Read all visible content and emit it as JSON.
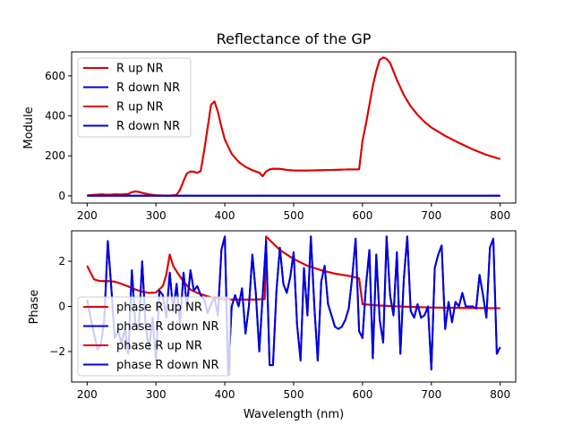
{
  "colors": {
    "red": "#dd0000",
    "blue": "#0000dd",
    "axis": "#000000",
    "background": "#ffffff"
  },
  "chart_data": [
    {
      "type": "line",
      "title": "Reflectance of the GP",
      "xlabel": "",
      "ylabel": "Module",
      "xlim": [
        177.5,
        822.5
      ],
      "ylim": [
        -36,
        720
      ],
      "xticks": [
        200,
        300,
        400,
        500,
        600,
        700,
        800
      ],
      "yticks": [
        0,
        200,
        400,
        600
      ],
      "grid": false,
      "legend_position": "top-left",
      "series": [
        {
          "name": "R up NR",
          "color": "#dd0000",
          "x": [
            200,
            210,
            220,
            230,
            240,
            250,
            260,
            265,
            270,
            275,
            280,
            290,
            300,
            310,
            320,
            330,
            335,
            340,
            345,
            350,
            355,
            360,
            365,
            370,
            375,
            380,
            385,
            390,
            395,
            400,
            410,
            420,
            430,
            440,
            450,
            455,
            460,
            465,
            470,
            480,
            490,
            500,
            520,
            540,
            560,
            580,
            595,
            600,
            605,
            610,
            615,
            620,
            625,
            630,
            635,
            640,
            650,
            660,
            670,
            680,
            690,
            700,
            720,
            740,
            760,
            780,
            800
          ],
          "y": [
            2,
            5,
            8,
            6,
            8,
            7,
            10,
            18,
            22,
            20,
            15,
            8,
            3,
            2,
            1,
            5,
            30,
            75,
            112,
            122,
            121,
            115,
            125,
            225,
            340,
            455,
            472,
            420,
            345,
            282,
            210,
            170,
            145,
            128,
            116,
            98,
            122,
            132,
            136,
            135,
            130,
            127,
            127,
            128,
            130,
            132,
            133,
            275,
            360,
            455,
            550,
            625,
            680,
            692,
            685,
            665,
            580,
            505,
            448,
            405,
            370,
            342,
            300,
            265,
            233,
            205,
            184
          ]
        },
        {
          "name": "R down NR",
          "color": "#0000dd",
          "x": [
            200,
            800
          ],
          "y": [
            1,
            1
          ]
        },
        {
          "name": "R up NR",
          "color": "#dd0000",
          "x": [
            200,
            210,
            220,
            230,
            240,
            250,
            260,
            265,
            270,
            275,
            280,
            290,
            300,
            310,
            320,
            330,
            335,
            340,
            345,
            350,
            355,
            360,
            365,
            370,
            375,
            380,
            385,
            390,
            395,
            400,
            410,
            420,
            430,
            440,
            450,
            455,
            460,
            465,
            470,
            480,
            490,
            500,
            520,
            540,
            560,
            580,
            595,
            600,
            605,
            610,
            615,
            620,
            625,
            630,
            635,
            640,
            650,
            660,
            670,
            680,
            690,
            700,
            720,
            740,
            760,
            780,
            800
          ],
          "y": [
            2,
            5,
            8,
            6,
            8,
            7,
            10,
            18,
            22,
            20,
            15,
            8,
            3,
            2,
            1,
            5,
            30,
            75,
            112,
            122,
            121,
            115,
            125,
            225,
            340,
            455,
            472,
            420,
            345,
            282,
            210,
            170,
            145,
            128,
            116,
            98,
            122,
            132,
            136,
            135,
            130,
            127,
            127,
            128,
            130,
            132,
            133,
            275,
            360,
            455,
            550,
            625,
            680,
            692,
            685,
            665,
            580,
            505,
            448,
            405,
            370,
            342,
            300,
            265,
            233,
            205,
            184
          ]
        },
        {
          "name": "R down NR",
          "color": "#0000dd",
          "x": [
            200,
            800
          ],
          "y": [
            1,
            1
          ]
        }
      ]
    },
    {
      "type": "line",
      "title": "",
      "xlabel": "Wavelength (nm)",
      "ylabel": "Phase",
      "xlim": [
        177.5,
        822.5
      ],
      "ylim": [
        -3.35,
        3.35
      ],
      "xticks": [
        200,
        300,
        400,
        500,
        600,
        700,
        800
      ],
      "yticks": [
        -2,
        0,
        2
      ],
      "grid": false,
      "legend_position": "bottom-left",
      "series": [
        {
          "name": "phase R up NR",
          "color": "#dd0000",
          "x": [
            200,
            205,
            210,
            215,
            220,
            225,
            230,
            240,
            250,
            260,
            270,
            280,
            290,
            300,
            310,
            315,
            320,
            325,
            330,
            340,
            350,
            360,
            370,
            380,
            390,
            400,
            420,
            440,
            458,
            460,
            470,
            480,
            500,
            520,
            540,
            560,
            580,
            595,
            600,
            620,
            650,
            700,
            750,
            800
          ],
          "y": [
            1.8,
            1.5,
            1.2,
            1.15,
            1.12,
            1.12,
            1.12,
            1.1,
            1.0,
            0.88,
            0.75,
            0.65,
            0.6,
            0.62,
            0.9,
            1.4,
            2.3,
            1.8,
            1.55,
            1.1,
            0.75,
            0.6,
            0.5,
            0.4,
            0.35,
            0.3,
            0.3,
            0.3,
            0.32,
            3.1,
            2.8,
            2.5,
            2.1,
            1.8,
            1.6,
            1.45,
            1.35,
            1.25,
            0.1,
            0.05,
            0.0,
            -0.05,
            -0.07,
            -0.08
          ]
        },
        {
          "name": "phase R down NR",
          "color": "#0000dd",
          "x": [
            200,
            205,
            210,
            215,
            220,
            225,
            230,
            235,
            240,
            245,
            250,
            255,
            260,
            265,
            270,
            275,
            280,
            285,
            290,
            295,
            300,
            305,
            310,
            315,
            320,
            325,
            330,
            335,
            340,
            345,
            350,
            355,
            360,
            365,
            370,
            375,
            380,
            385,
            390,
            395,
            400,
            405,
            410,
            415,
            420,
            425,
            430,
            435,
            440,
            445,
            450,
            455,
            460,
            465,
            470,
            475,
            480,
            485,
            490,
            495,
            500,
            505,
            510,
            515,
            520,
            525,
            530,
            535,
            540,
            545,
            550,
            555,
            560,
            565,
            570,
            575,
            580,
            585,
            590,
            595,
            600,
            605,
            610,
            615,
            620,
            625,
            630,
            635,
            640,
            645,
            650,
            655,
            660,
            665,
            670,
            675,
            680,
            685,
            690,
            695,
            700,
            705,
            710,
            715,
            720,
            725,
            730,
            735,
            740,
            745,
            750,
            755,
            760,
            765,
            770,
            775,
            780,
            785,
            790,
            795,
            800
          ],
          "y": [
            0.3,
            -0.5,
            -1.2,
            -1.9,
            -1.7,
            -0.6,
            2.9,
            0.9,
            -1.4,
            -1.1,
            -1.6,
            -1.0,
            -2.1,
            1.6,
            -0.7,
            -1.0,
            2.0,
            -0.9,
            -1.9,
            -0.5,
            -2.4,
            0.7,
            0.5,
            -0.5,
            1.5,
            -0.2,
            1.0,
            -0.8,
            1.5,
            0.0,
            1.6,
            0.7,
            0.9,
            0.5,
            0.3,
            -0.3,
            0.1,
            0.4,
            -0.4,
            2.5,
            3.1,
            -3.0,
            0.0,
            0.5,
            0.0,
            0.8,
            -1.2,
            0.0,
            2.3,
            0.6,
            -2.0,
            0.5,
            2.9,
            -2.6,
            -2.6,
            0.7,
            2.6,
            1.0,
            0.6,
            1.3,
            2.4,
            -0.8,
            -2.4,
            1.7,
            -0.4,
            3.1,
            0.0,
            -2.4,
            1.1,
            1.8,
            0.1,
            -0.4,
            -0.9,
            -1.0,
            -0.9,
            -0.6,
            -0.1,
            1.3,
            3.0,
            -1.1,
            -1.4,
            0.9,
            2.5,
            -2.3,
            2.3,
            -0.6,
            -1.6,
            3.1,
            0.5,
            -0.4,
            2.4,
            -2.1,
            1.2,
            3.1,
            -0.2,
            -0.5,
            0.1,
            -0.5,
            -0.4,
            0.0,
            -2.8,
            1.7,
            2.3,
            2.7,
            -1.0,
            0.2,
            -0.7,
            0.2,
            0.0,
            0.6,
            0.0,
            0.0,
            0.0,
            -0.1,
            1.4,
            0.5,
            -0.5,
            2.6,
            3.0,
            -2.1,
            -1.8
          ]
        },
        {
          "name": "phase R up NR",
          "color": "#dd0000",
          "x": [
            200,
            205,
            210,
            215,
            220,
            225,
            230,
            240,
            250,
            260,
            270,
            280,
            290,
            300,
            310,
            315,
            320,
            325,
            330,
            340,
            350,
            360,
            370,
            380,
            390,
            400,
            420,
            440,
            458,
            460,
            470,
            480,
            500,
            520,
            540,
            560,
            580,
            595,
            600,
            620,
            650,
            700,
            750,
            800
          ],
          "y": [
            1.8,
            1.5,
            1.2,
            1.15,
            1.12,
            1.12,
            1.12,
            1.1,
            1.0,
            0.88,
            0.75,
            0.65,
            0.6,
            0.62,
            0.9,
            1.4,
            2.3,
            1.8,
            1.55,
            1.1,
            0.75,
            0.6,
            0.5,
            0.4,
            0.35,
            0.3,
            0.3,
            0.3,
            0.32,
            3.1,
            2.8,
            2.5,
            2.1,
            1.8,
            1.6,
            1.45,
            1.35,
            1.25,
            0.1,
            0.05,
            0.0,
            -0.05,
            -0.07,
            -0.08
          ]
        },
        {
          "name": "phase R down NR",
          "color": "#0000dd",
          "x": [
            200,
            205,
            210,
            215,
            220,
            225,
            230,
            235,
            240,
            245,
            250,
            255,
            260,
            265,
            270,
            275,
            280,
            285,
            290,
            295,
            300,
            305,
            310,
            315,
            320,
            325,
            330,
            335,
            340,
            345,
            350,
            355,
            360,
            365,
            370,
            375,
            380,
            385,
            390,
            395,
            400,
            405,
            410,
            415,
            420,
            425,
            430,
            435,
            440,
            445,
            450,
            455,
            460,
            465,
            470,
            475,
            480,
            485,
            490,
            495,
            500,
            505,
            510,
            515,
            520,
            525,
            530,
            535,
            540,
            545,
            550,
            555,
            560,
            565,
            570,
            575,
            580,
            585,
            590,
            595,
            600,
            605,
            610,
            615,
            620,
            625,
            630,
            635,
            640,
            645,
            650,
            655,
            660,
            665,
            670,
            675,
            680,
            685,
            690,
            695,
            700,
            705,
            710,
            715,
            720,
            725,
            730,
            735,
            740,
            745,
            750,
            755,
            760,
            765,
            770,
            775,
            780,
            785,
            790,
            795,
            800
          ],
          "y": [
            0.3,
            -0.5,
            -1.2,
            -1.9,
            -1.7,
            -0.6,
            2.9,
            0.9,
            -1.4,
            -1.1,
            -1.6,
            -1.0,
            -2.1,
            1.6,
            -0.7,
            -1.0,
            2.0,
            -0.9,
            -1.9,
            -0.5,
            -2.4,
            0.7,
            0.5,
            -0.5,
            1.5,
            -0.2,
            1.0,
            -0.8,
            1.5,
            0.0,
            1.6,
            0.7,
            0.9,
            0.5,
            0.3,
            -0.3,
            0.1,
            0.4,
            -0.4,
            2.5,
            3.1,
            -3.0,
            0.0,
            0.5,
            0.0,
            0.8,
            -1.2,
            0.0,
            2.3,
            0.6,
            -2.0,
            0.5,
            2.9,
            -2.6,
            -2.6,
            0.7,
            2.6,
            1.0,
            0.6,
            1.3,
            2.4,
            -0.8,
            -2.4,
            1.7,
            -0.4,
            3.1,
            0.0,
            -2.4,
            1.1,
            1.8,
            0.1,
            -0.4,
            -0.9,
            -1.0,
            -0.9,
            -0.6,
            -0.1,
            1.3,
            3.0,
            -1.1,
            -1.4,
            0.9,
            2.5,
            -2.3,
            2.3,
            -0.6,
            -1.6,
            3.1,
            0.5,
            -0.4,
            2.4,
            -2.1,
            1.2,
            3.1,
            -0.2,
            -0.5,
            0.1,
            -0.5,
            -0.4,
            0.0,
            -2.8,
            1.7,
            2.3,
            2.7,
            -1.0,
            0.2,
            -0.7,
            0.2,
            0.0,
            0.6,
            0.0,
            0.0,
            0.0,
            -0.1,
            1.4,
            0.5,
            -0.5,
            2.6,
            3.0,
            -2.1,
            -1.8
          ]
        }
      ]
    }
  ]
}
